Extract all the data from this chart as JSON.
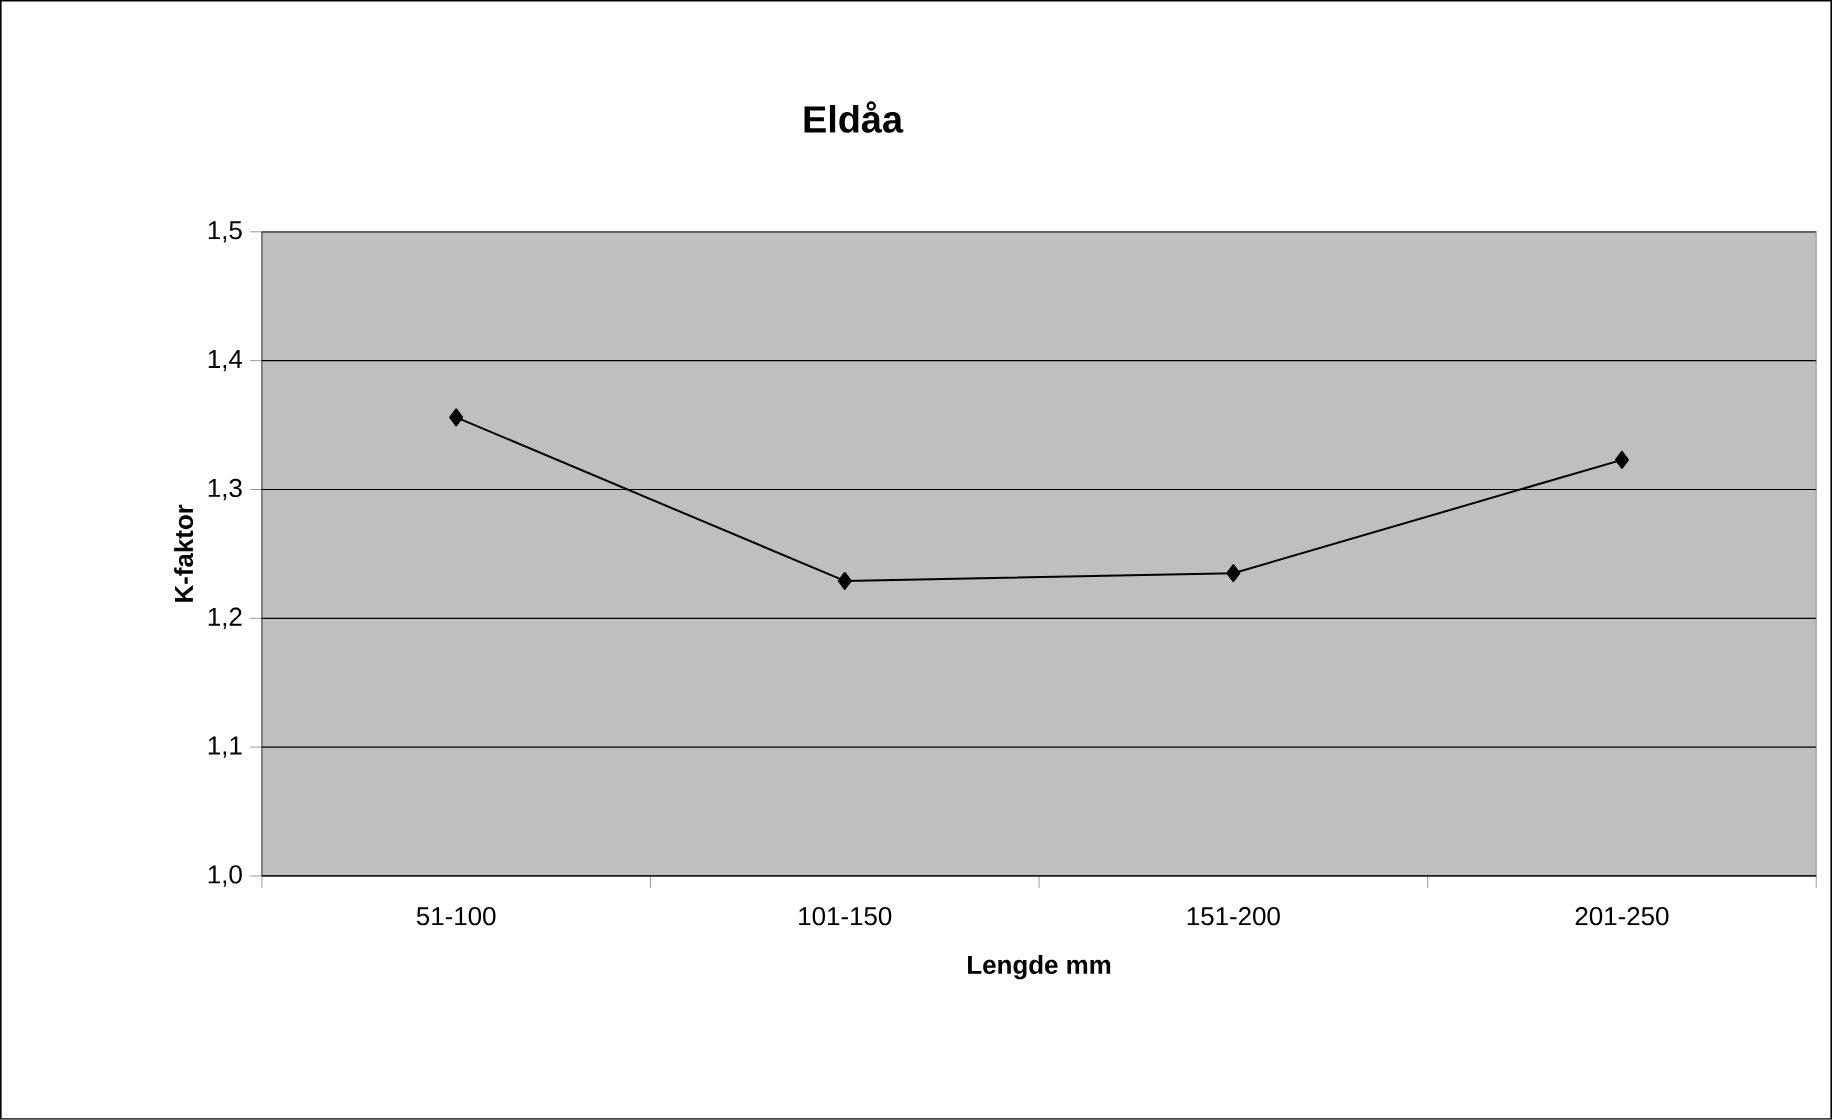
{
  "chart_data": {
    "type": "line",
    "title": "Eldåa",
    "xlabel": "Lengde mm",
    "ylabel": "K-faktor",
    "categories": [
      "51-100",
      "101-150",
      "151-200",
      "201-250"
    ],
    "series": [
      {
        "color": "#000000",
        "values": [
          1.356,
          1.229,
          1.235,
          1.323
        ]
      }
    ],
    "ylim": [
      1.0,
      1.5
    ],
    "yticks": [
      {
        "value": 1.0,
        "label": "1,0"
      },
      {
        "value": 1.1,
        "label": "1,1"
      },
      {
        "value": 1.2,
        "label": "1,2"
      },
      {
        "value": 1.3,
        "label": "1,3"
      },
      {
        "value": 1.4,
        "label": "1,4"
      },
      {
        "value": 1.5,
        "label": "1,5"
      }
    ],
    "grid": "y",
    "legend": false,
    "marker": "diamond",
    "line_style": "solid"
  }
}
